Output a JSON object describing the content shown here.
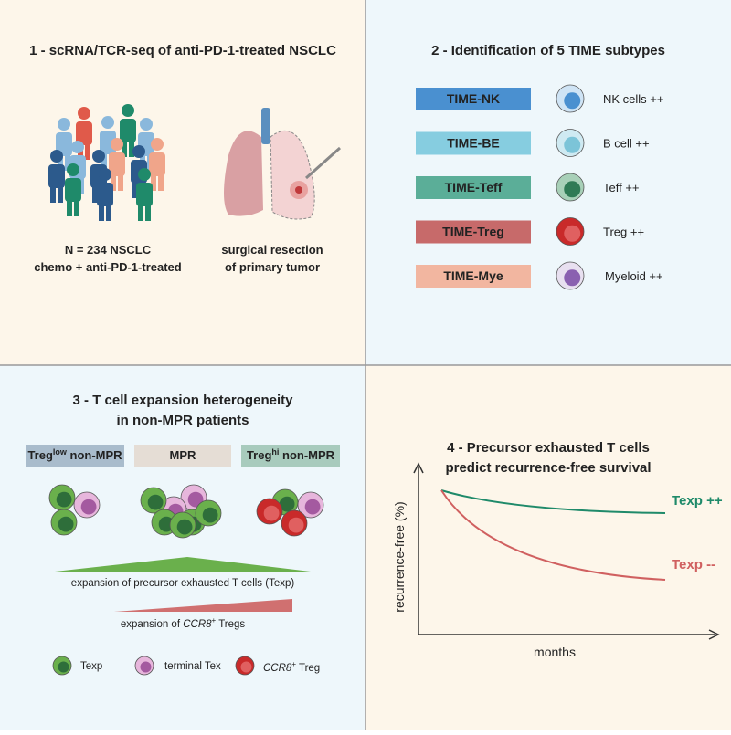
{
  "panel1": {
    "title": "1 - scRNA/TCR-seq of anti-PD-1-treated NSCLC",
    "cohort_caption": [
      "N = 234 NSCLC",
      "chemo + anti-PD-1-treated"
    ],
    "surgery_caption": [
      "surgical resection",
      "of primary tumor"
    ]
  },
  "panel2": {
    "title": "2 - Identification of 5 TIME subtypes",
    "subtypes": [
      {
        "label": "TIME-NK",
        "cell": "NK cells ++"
      },
      {
        "label": "TIME-BE",
        "cell": "B cell ++"
      },
      {
        "label": "TIME-Teff",
        "cell": "Teff ++"
      },
      {
        "label": "TIME-Treg",
        "cell": "Treg ++"
      },
      {
        "label": "TIME-Mye",
        "cell": "Myeloid ++"
      }
    ]
  },
  "panel3": {
    "title": [
      "3 - T cell expansion heterogeneity",
      "in non-MPR patients"
    ],
    "groups": [
      {
        "base": "Treg",
        "sup": "low",
        "rest": " non-MPR"
      },
      {
        "base": "MPR"
      },
      {
        "base": "Treg",
        "sup": "hi",
        "rest": " non-MPR"
      }
    ],
    "texp_gradient": "expansion of precursor exhausted T cells (Texp)",
    "treg_gradient": [
      "expansion of ",
      "CCR8",
      "+",
      " Tregs"
    ],
    "legend": [
      {
        "label": "Texp"
      },
      {
        "label": "terminal Tex"
      },
      {
        "italic": "CCR8",
        "sup": "+",
        "rest": " Treg"
      }
    ]
  },
  "panel4": {
    "title": [
      "4 - Precursor exhausted T cells",
      "predict recurrence-free survival"
    ],
    "y_label": "recurrence-free (%)",
    "x_label": "months",
    "curves": [
      "Texp ++",
      "Texp --"
    ]
  }
}
